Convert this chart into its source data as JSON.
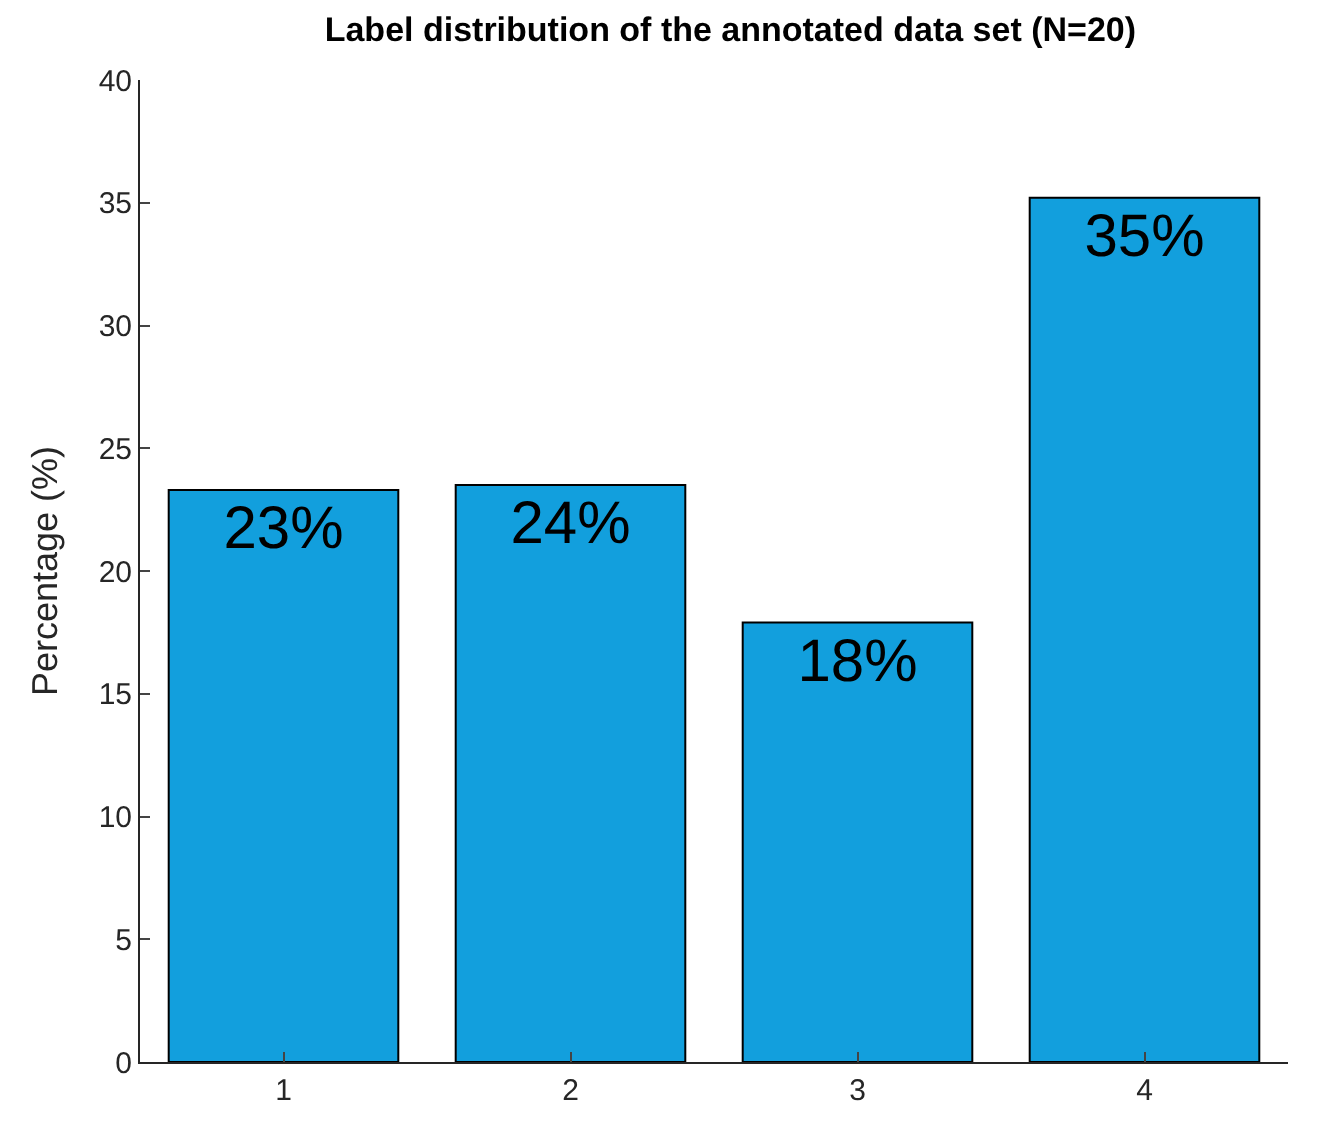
{
  "chart_data": {
    "type": "bar",
    "title": "Label distribution of the annotated data set (N=20)",
    "ylabel": "Percentage (%)",
    "categories": [
      "1",
      "2",
      "3",
      "4"
    ],
    "values": [
      23.3,
      23.5,
      17.9,
      35.2
    ],
    "value_labels": [
      "23%",
      "24%",
      "18%",
      "35%"
    ],
    "color": "#129fdd",
    "ylim": [
      0,
      40
    ],
    "yticks": [
      0,
      5,
      10,
      15,
      20,
      25,
      30,
      35,
      40
    ]
  }
}
